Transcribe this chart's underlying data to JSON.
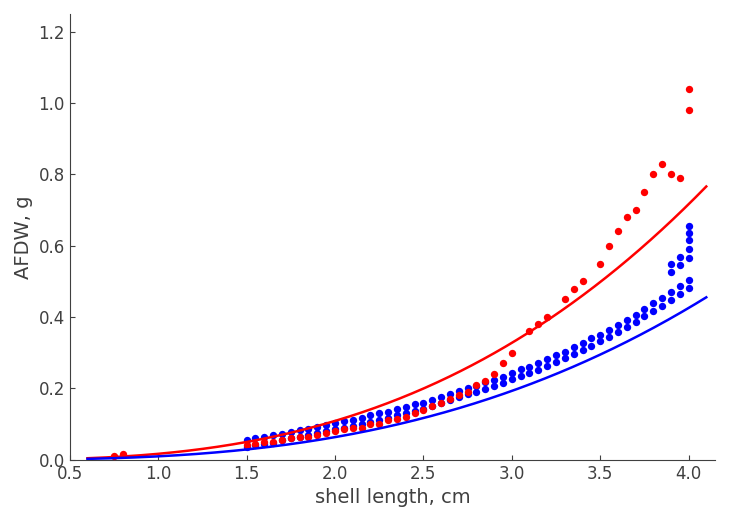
{
  "title": "",
  "xlabel": "shell length, cm",
  "ylabel": "AFDW, g",
  "xlim": [
    0.5,
    4.15
  ],
  "ylim": [
    0,
    1.25
  ],
  "xticks": [
    0.5,
    1.0,
    1.5,
    2.0,
    2.5,
    3.0,
    3.5,
    4.0
  ],
  "yticks": [
    0,
    0.2,
    0.4,
    0.6,
    0.8,
    1.0,
    1.2
  ],
  "background_color": "#ffffff",
  "red_curve": {
    "a": 0.0165,
    "b": 2.72
  },
  "blue_curve": {
    "a": 0.0094,
    "b": 2.75
  },
  "red_scatter": [
    [
      0.75,
      0.01
    ],
    [
      0.8,
      0.015
    ],
    [
      1.5,
      0.04
    ],
    [
      1.55,
      0.045
    ],
    [
      1.6,
      0.05
    ],
    [
      1.65,
      0.05
    ],
    [
      1.7,
      0.055
    ],
    [
      1.75,
      0.06
    ],
    [
      1.8,
      0.065
    ],
    [
      1.85,
      0.065
    ],
    [
      1.9,
      0.07
    ],
    [
      1.95,
      0.075
    ],
    [
      2.0,
      0.08
    ],
    [
      2.05,
      0.085
    ],
    [
      2.1,
      0.09
    ],
    [
      2.15,
      0.09
    ],
    [
      2.2,
      0.1
    ],
    [
      2.25,
      0.1
    ],
    [
      2.3,
      0.11
    ],
    [
      2.35,
      0.115
    ],
    [
      2.4,
      0.12
    ],
    [
      2.45,
      0.13
    ],
    [
      2.5,
      0.14
    ],
    [
      2.55,
      0.15
    ],
    [
      2.6,
      0.16
    ],
    [
      2.65,
      0.17
    ],
    [
      2.7,
      0.18
    ],
    [
      2.75,
      0.19
    ],
    [
      2.8,
      0.21
    ],
    [
      2.85,
      0.22
    ],
    [
      2.9,
      0.24
    ],
    [
      2.95,
      0.27
    ],
    [
      3.0,
      0.3
    ],
    [
      3.1,
      0.36
    ],
    [
      3.15,
      0.38
    ],
    [
      3.2,
      0.4
    ],
    [
      3.3,
      0.45
    ],
    [
      3.35,
      0.48
    ],
    [
      3.4,
      0.5
    ],
    [
      3.5,
      0.55
    ],
    [
      3.55,
      0.6
    ],
    [
      3.6,
      0.64
    ],
    [
      3.65,
      0.68
    ],
    [
      3.7,
      0.7
    ],
    [
      3.75,
      0.75
    ],
    [
      3.8,
      0.8
    ],
    [
      3.85,
      0.83
    ],
    [
      3.9,
      0.8
    ],
    [
      3.95,
      0.79
    ],
    [
      4.0,
      0.98
    ],
    [
      4.0,
      1.04
    ]
  ],
  "blue_scatter": [
    [
      1.5,
      0.035
    ],
    [
      1.55,
      0.04
    ],
    [
      1.6,
      0.045
    ],
    [
      1.65,
      0.048
    ],
    [
      1.5,
      0.055
    ],
    [
      1.55,
      0.06
    ],
    [
      1.6,
      0.065
    ],
    [
      1.65,
      0.068
    ],
    [
      1.7,
      0.055
    ],
    [
      1.75,
      0.06
    ],
    [
      1.8,
      0.065
    ],
    [
      1.85,
      0.07
    ],
    [
      1.7,
      0.072
    ],
    [
      1.75,
      0.078
    ],
    [
      1.8,
      0.082
    ],
    [
      1.85,
      0.086
    ],
    [
      1.9,
      0.075
    ],
    [
      1.95,
      0.08
    ],
    [
      2.0,
      0.085
    ],
    [
      2.05,
      0.09
    ],
    [
      1.9,
      0.092
    ],
    [
      1.95,
      0.097
    ],
    [
      2.0,
      0.102
    ],
    [
      2.05,
      0.108
    ],
    [
      2.1,
      0.095
    ],
    [
      2.15,
      0.1
    ],
    [
      2.2,
      0.106
    ],
    [
      2.25,
      0.112
    ],
    [
      2.1,
      0.112
    ],
    [
      2.15,
      0.118
    ],
    [
      2.2,
      0.124
    ],
    [
      2.25,
      0.13
    ],
    [
      2.3,
      0.118
    ],
    [
      2.35,
      0.124
    ],
    [
      2.4,
      0.13
    ],
    [
      2.45,
      0.136
    ],
    [
      2.3,
      0.135
    ],
    [
      2.35,
      0.142
    ],
    [
      2.4,
      0.148
    ],
    [
      2.45,
      0.155
    ],
    [
      2.5,
      0.143
    ],
    [
      2.55,
      0.15
    ],
    [
      2.6,
      0.158
    ],
    [
      2.65,
      0.166
    ],
    [
      2.5,
      0.16
    ],
    [
      2.55,
      0.168
    ],
    [
      2.6,
      0.176
    ],
    [
      2.65,
      0.184
    ],
    [
      2.7,
      0.175
    ],
    [
      2.75,
      0.183
    ],
    [
      2.8,
      0.191
    ],
    [
      2.85,
      0.199
    ],
    [
      2.7,
      0.192
    ],
    [
      2.75,
      0.2
    ],
    [
      2.8,
      0.208
    ],
    [
      2.85,
      0.217
    ],
    [
      2.9,
      0.207
    ],
    [
      2.95,
      0.216
    ],
    [
      3.0,
      0.225
    ],
    [
      3.05,
      0.234
    ],
    [
      2.9,
      0.224
    ],
    [
      2.95,
      0.233
    ],
    [
      3.0,
      0.243
    ],
    [
      3.05,
      0.253
    ],
    [
      3.1,
      0.242
    ],
    [
      3.15,
      0.252
    ],
    [
      3.2,
      0.262
    ],
    [
      3.25,
      0.273
    ],
    [
      3.1,
      0.26
    ],
    [
      3.15,
      0.271
    ],
    [
      3.2,
      0.282
    ],
    [
      3.25,
      0.293
    ],
    [
      3.3,
      0.284
    ],
    [
      3.35,
      0.295
    ],
    [
      3.4,
      0.307
    ],
    [
      3.45,
      0.319
    ],
    [
      3.3,
      0.303
    ],
    [
      3.35,
      0.315
    ],
    [
      3.4,
      0.327
    ],
    [
      3.45,
      0.34
    ],
    [
      3.5,
      0.332
    ],
    [
      3.55,
      0.345
    ],
    [
      3.6,
      0.358
    ],
    [
      3.65,
      0.372
    ],
    [
      3.5,
      0.351
    ],
    [
      3.55,
      0.365
    ],
    [
      3.6,
      0.379
    ],
    [
      3.65,
      0.393
    ],
    [
      3.7,
      0.387
    ],
    [
      3.75,
      0.402
    ],
    [
      3.8,
      0.417
    ],
    [
      3.85,
      0.432
    ],
    [
      3.7,
      0.406
    ],
    [
      3.75,
      0.422
    ],
    [
      3.8,
      0.438
    ],
    [
      3.85,
      0.454
    ],
    [
      3.9,
      0.447
    ],
    [
      3.95,
      0.464
    ],
    [
      4.0,
      0.481
    ],
    [
      3.9,
      0.47
    ],
    [
      3.95,
      0.487
    ],
    [
      4.0,
      0.505
    ],
    [
      3.9,
      0.525
    ],
    [
      3.95,
      0.545
    ],
    [
      4.0,
      0.565
    ],
    [
      3.9,
      0.548
    ],
    [
      3.95,
      0.568
    ],
    [
      4.0,
      0.59
    ],
    [
      4.0,
      0.615
    ],
    [
      4.0,
      0.635
    ],
    [
      4.0,
      0.655
    ]
  ],
  "red_color": "#ff0000",
  "blue_color": "#0000ff",
  "marker_size": 28,
  "line_width": 1.8,
  "font_size_label": 14,
  "font_size_tick": 12
}
